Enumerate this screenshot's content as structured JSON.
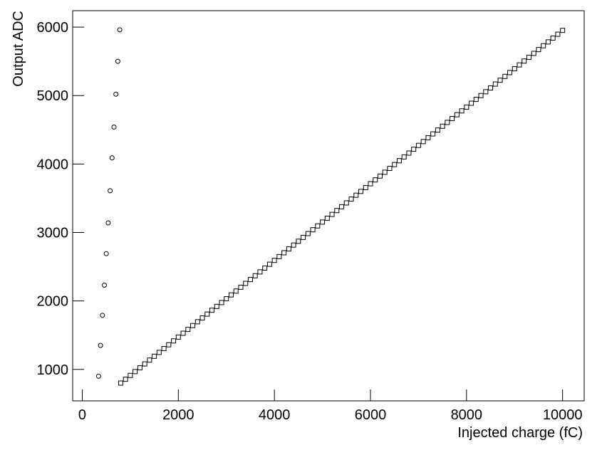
{
  "chart_data": {
    "type": "scatter",
    "x_label": "Injected charge (fC)",
    "y_label": "Output  ADC",
    "xlim": [
      -200,
      10450
    ],
    "ylim": [
      540,
      6240
    ],
    "xticks": [
      0,
      2000,
      4000,
      6000,
      8000,
      10000
    ],
    "yticks": [
      1000,
      2000,
      3000,
      4000,
      5000,
      6000
    ],
    "series": [
      {
        "marker": "circle",
        "color": "#000000",
        "x": [
          340,
          380,
          420,
          460,
          500,
          540,
          580,
          620,
          660,
          700,
          740,
          780
        ],
        "values": [
          900,
          1350,
          1790,
          2230,
          2690,
          3140,
          3610,
          4090,
          4540,
          5020,
          5500,
          5960
        ]
      },
      {
        "marker": "square",
        "color": "#000000",
        "x": [
          800,
          900,
          1000,
          1100,
          1200,
          1300,
          1400,
          1500,
          1600,
          1700,
          1800,
          1900,
          2000,
          2100,
          2200,
          2300,
          2400,
          2500,
          2600,
          2700,
          2800,
          2900,
          3000,
          3100,
          3200,
          3300,
          3400,
          3500,
          3600,
          3700,
          3800,
          3900,
          4000,
          4100,
          4200,
          4300,
          4400,
          4500,
          4600,
          4700,
          4800,
          4900,
          5000,
          5100,
          5200,
          5300,
          5400,
          5500,
          5600,
          5700,
          5800,
          5900,
          6000,
          6100,
          6200,
          6300,
          6400,
          6500,
          6600,
          6700,
          6800,
          6900,
          7000,
          7100,
          7200,
          7300,
          7400,
          7500,
          7600,
          7700,
          7800,
          7900,
          8000,
          8100,
          8200,
          8300,
          8400,
          8500,
          8600,
          8700,
          8800,
          8900,
          9000,
          9100,
          9200,
          9300,
          9400,
          9500,
          9600,
          9700,
          9800,
          9900,
          10000
        ],
        "values": [
          800,
          856,
          912,
          968,
          1024,
          1080,
          1136,
          1192,
          1248,
          1304,
          1360,
          1416,
          1472,
          1528,
          1584,
          1640,
          1696,
          1752,
          1808,
          1864,
          1920,
          1976,
          2032,
          2088,
          2144,
          2200,
          2256,
          2312,
          2368,
          2424,
          2480,
          2536,
          2592,
          2648,
          2704,
          2760,
          2816,
          2872,
          2928,
          2984,
          3040,
          3096,
          3152,
          3208,
          3264,
          3320,
          3376,
          3432,
          3488,
          3544,
          3600,
          3656,
          3712,
          3768,
          3824,
          3880,
          3936,
          3992,
          4048,
          4104,
          4160,
          4216,
          4272,
          4328,
          4384,
          4440,
          4496,
          4552,
          4608,
          4664,
          4720,
          4776,
          4832,
          4888,
          4944,
          5000,
          5056,
          5112,
          5168,
          5224,
          5280,
          5336,
          5392,
          5448,
          5504,
          5560,
          5616,
          5672,
          5728,
          5784,
          5840,
          5896,
          5952
        ]
      }
    ]
  }
}
